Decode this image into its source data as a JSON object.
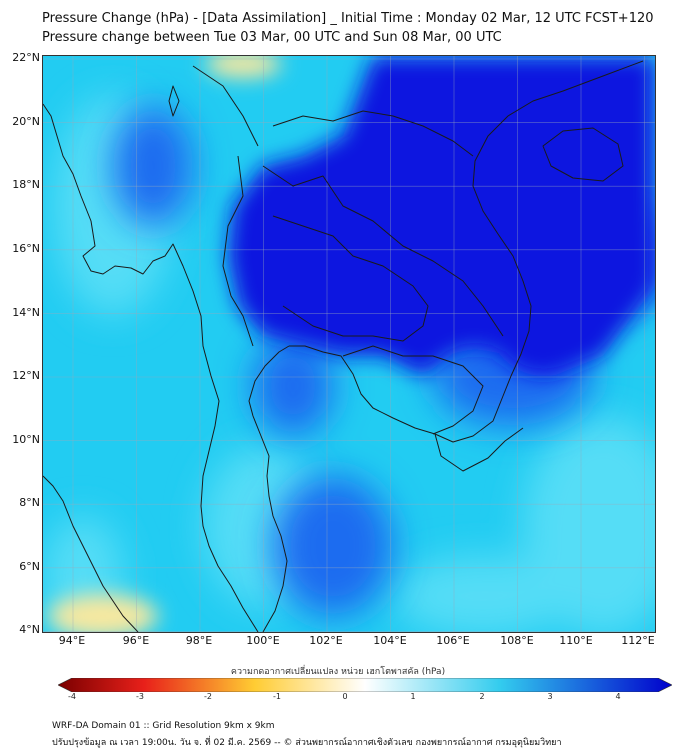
{
  "title_line1": "Pressure Change (hPa) - [Data Assimilation] _ Initial Time : Monday 02 Mar, 12 UTC FCST+120",
  "title_line2": "Pressure change between Tue 03 Mar, 00 UTC and Sun 08 Mar, 00 UTC",
  "lat_labels": [
    "22°N",
    "20°N",
    "18°N",
    "16°N",
    "14°N",
    "12°N",
    "10°N",
    "8°N",
    "6°N",
    "4°N"
  ],
  "lon_labels": [
    "94°E",
    "96°E",
    "98°E",
    "100°E",
    "102°E",
    "104°E",
    "106°E",
    "108°E",
    "110°E",
    "112°E"
  ],
  "colorbar": {
    "caption": "ความกดอากาศเปลี่ยนแปลง หน่วย เฮกโตพาสคัล (hPa)",
    "ticks": [
      "-4",
      "-3",
      "-2",
      "-1",
      "0",
      "1",
      "2",
      "3",
      "4"
    ],
    "colors": {
      "strong_negative": "#7a0000",
      "negative": "#e8201a",
      "mild_negative": "#ffcc33",
      "near_zero": "#ffffff",
      "positive": "#33ccee",
      "strong_positive": "#0000cc"
    }
  },
  "footer_line1": "WRF-DA Domain 01 :: Grid Resolution 9km x 9km",
  "footer_line2": "ปรับปรุงข้อมูล ณ เวลา 19:00น. วัน จ. ที่ 02 มี.ค. 2569 -- © ส่วนพยากรณ์อากาศเชิงตัวเลข กองพยากรณ์อากาศ กรมอุตุนิยมวิทยา",
  "map": {
    "field_colors": {
      "background": "#22ccf2",
      "deep_blue": "#0a14e0",
      "mid_blue": "#1a6cf0",
      "light_cyan": "#55ddf6",
      "yellow": "#f6e8a0"
    },
    "coastline_color": "#1a1a1a",
    "grid_color": "#9ab"
  }
}
